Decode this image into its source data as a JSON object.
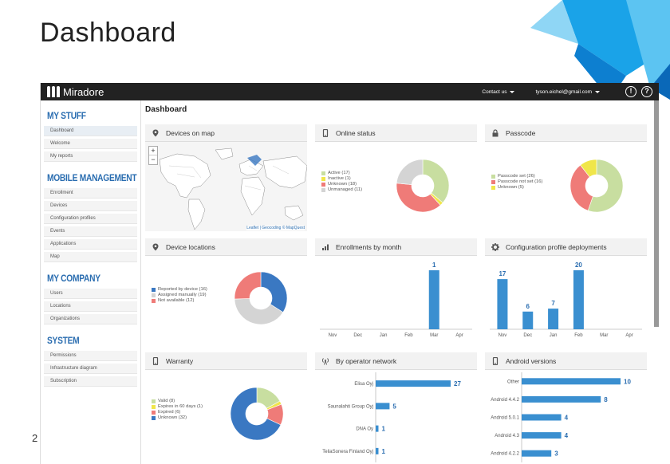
{
  "slide": {
    "title": "Dashboard",
    "page_number": "2"
  },
  "topbar": {
    "brand": "Miradore",
    "contact": "Contact us",
    "user": "tyson.eichel@gmail.com"
  },
  "sidebar": {
    "sections": [
      {
        "title": "MY STUFF",
        "items": [
          "Dashboard",
          "Welcome",
          "My reports"
        ]
      },
      {
        "title": "MOBILE MANAGEMENT",
        "items": [
          "Enrollment",
          "Devices",
          "Configuration profiles",
          "Events",
          "Applications",
          "Map"
        ]
      },
      {
        "title": "MY COMPANY",
        "items": [
          "Users",
          "Locations",
          "Organizations"
        ]
      },
      {
        "title": "SYSTEM",
        "items": [
          "Permissions",
          "Infrastructure diagram",
          "Subscription"
        ]
      }
    ]
  },
  "main": {
    "title": "Dashboard"
  },
  "widgets": {
    "map": {
      "title": "Devices on map",
      "attribution_leaflet": "Leaflet",
      "attribution_rest": " | Geocoding © MapQuest",
      "zoom_in": "+",
      "zoom_out": "−"
    },
    "online": {
      "title": "Online status",
      "legend": [
        "Active (17)",
        "Inactive (1)",
        "Unknown (18)",
        "Unmanaged (11)"
      ]
    },
    "passcode": {
      "title": "Passcode",
      "legend": [
        "Passcode set (26)",
        "Passcode not set (16)",
        "Unknown (5)"
      ]
    },
    "locations": {
      "title": "Device locations",
      "legend": [
        "Reported by device (16)",
        "Assigned manually (19)",
        "Not available (12)"
      ]
    },
    "enrollments": {
      "title": "Enrollments by month"
    },
    "config": {
      "title": "Configuration profile deployments"
    },
    "warranty": {
      "title": "Warranty",
      "legend": [
        "Valid (8)",
        "Expires in 60 days (1)",
        "Expired (6)",
        "Unknown (32)"
      ]
    },
    "operator": {
      "title": "By operator network"
    },
    "android": {
      "title": "Android versions"
    }
  },
  "colors": {
    "blue": "#3a78c2",
    "green": "#c8dea0",
    "yellow": "#f0e64a",
    "red": "#ef7b78",
    "gray": "#d4d4d4",
    "bar": "#3a8fd0"
  },
  "chart_data": [
    {
      "id": "online",
      "type": "pie",
      "title": "Online status",
      "labels": [
        "Active",
        "Inactive",
        "Unknown",
        "Unmanaged"
      ],
      "values": [
        17,
        1,
        18,
        11
      ],
      "colors": [
        "#c8dea0",
        "#f0e64a",
        "#ef7b78",
        "#d4d4d4"
      ]
    },
    {
      "id": "passcode",
      "type": "pie",
      "title": "Passcode",
      "labels": [
        "Passcode set",
        "Passcode not set",
        "Unknown"
      ],
      "values": [
        26,
        16,
        5
      ],
      "colors": [
        "#c8dea0",
        "#ef7b78",
        "#f0e64a"
      ]
    },
    {
      "id": "locations",
      "type": "pie",
      "title": "Device locations",
      "labels": [
        "Reported by device",
        "Assigned manually",
        "Not available"
      ],
      "values": [
        16,
        19,
        12
      ],
      "colors": [
        "#3a78c2",
        "#d4d4d4",
        "#ef7b78"
      ]
    },
    {
      "id": "warranty",
      "type": "pie",
      "title": "Warranty",
      "labels": [
        "Valid",
        "Expires in 60 days",
        "Expired",
        "Unknown"
      ],
      "values": [
        8,
        1,
        6,
        32
      ],
      "colors": [
        "#c8dea0",
        "#f0e64a",
        "#ef7b78",
        "#3a78c2"
      ]
    },
    {
      "id": "enrollments",
      "type": "bar",
      "title": "Enrollments by month",
      "categories": [
        "Nov",
        "Dec",
        "Jan",
        "Feb",
        "Mar",
        "Apr"
      ],
      "values": [
        0,
        0,
        0,
        0,
        1,
        0
      ],
      "ylim": [
        0,
        1
      ]
    },
    {
      "id": "config",
      "type": "bar",
      "title": "Configuration profile deployments",
      "categories": [
        "Nov",
        "Dec",
        "Jan",
        "Feb",
        "Mar",
        "Apr"
      ],
      "values": [
        17,
        6,
        7,
        20,
        0,
        0
      ],
      "ylim": [
        0,
        20
      ]
    },
    {
      "id": "operator",
      "type": "bar",
      "orientation": "horizontal",
      "title": "By operator network",
      "categories": [
        "Elisa Oyj",
        "Saunalahti Group Oyj",
        "DNA Oy",
        "TeliaSonera Finland Oyj"
      ],
      "values": [
        27,
        5,
        1,
        1
      ],
      "xlim": [
        0,
        27
      ]
    },
    {
      "id": "android",
      "type": "bar",
      "orientation": "horizontal",
      "title": "Android versions",
      "categories": [
        "Other",
        "Android 4.4.2",
        "Android 5.0.1",
        "Android 4.3",
        "Android 4.2.2"
      ],
      "values": [
        10,
        8,
        4,
        4,
        3
      ],
      "xlim": [
        0,
        10
      ]
    }
  ]
}
